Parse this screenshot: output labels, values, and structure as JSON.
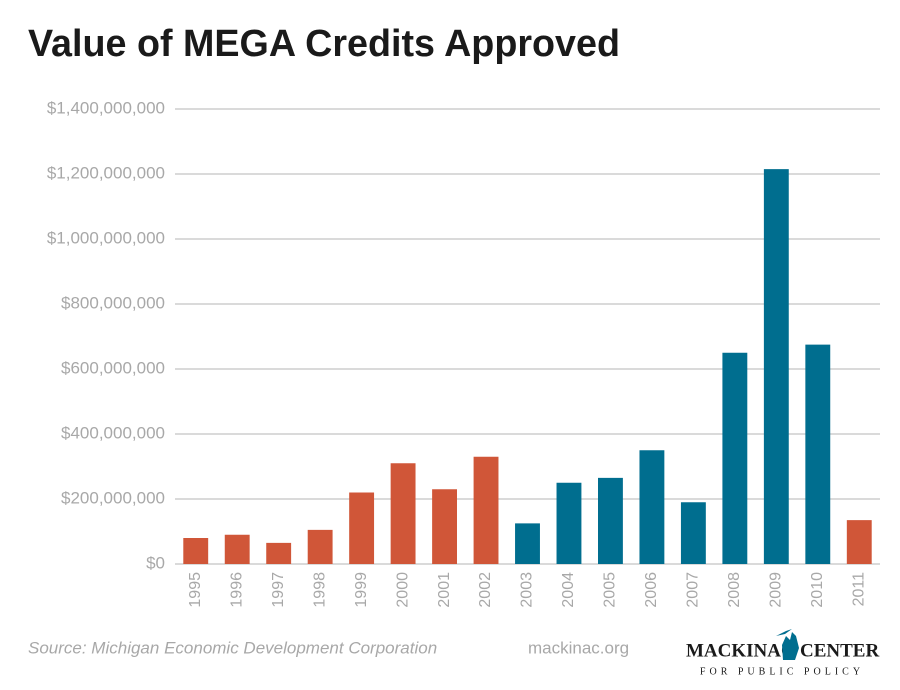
{
  "chart_data": {
    "type": "bar",
    "title": "Value of MEGA Credits Approved",
    "categories": [
      "1995",
      "1996",
      "1997",
      "1998",
      "1999",
      "2000",
      "2001",
      "2002",
      "2003",
      "2004",
      "2005",
      "2006",
      "2007",
      "2008",
      "2009",
      "2010",
      "2011"
    ],
    "values": [
      80000000,
      90000000,
      65000000,
      105000000,
      220000000,
      310000000,
      230000000,
      330000000,
      125000000,
      250000000,
      265000000,
      350000000,
      190000000,
      650000000,
      1215000000,
      675000000,
      135000000
    ],
    "colors": [
      "#d05638",
      "#d05638",
      "#d05638",
      "#d05638",
      "#d05638",
      "#d05638",
      "#d05638",
      "#d05638",
      "#006e8f",
      "#006e8f",
      "#006e8f",
      "#006e8f",
      "#006e8f",
      "#006e8f",
      "#006e8f",
      "#006e8f",
      "#d05638"
    ],
    "ylim": [
      0,
      1400000000
    ],
    "yticks": [
      {
        "value": 0,
        "label": "$0"
      },
      {
        "value": 200000000,
        "label": "$200,000,000"
      },
      {
        "value": 400000000,
        "label": "$400,000,000"
      },
      {
        "value": 600000000,
        "label": "$600,000,000"
      },
      {
        "value": 800000000,
        "label": "$800,000,000"
      },
      {
        "value": 1000000000,
        "label": "$1,000,000,000"
      },
      {
        "value": 1200000000,
        "label": "$1,200,000,000"
      },
      {
        "value": 1400000000,
        "label": "$1,400,000,000"
      }
    ],
    "grid": true,
    "source": "Source: Michigan Economic Development Corporation",
    "website": "mackinac.org",
    "logo_left": "MACKINAC",
    "logo_right": "CENTER",
    "logo_tagline": "FOR PUBLIC POLICY"
  }
}
